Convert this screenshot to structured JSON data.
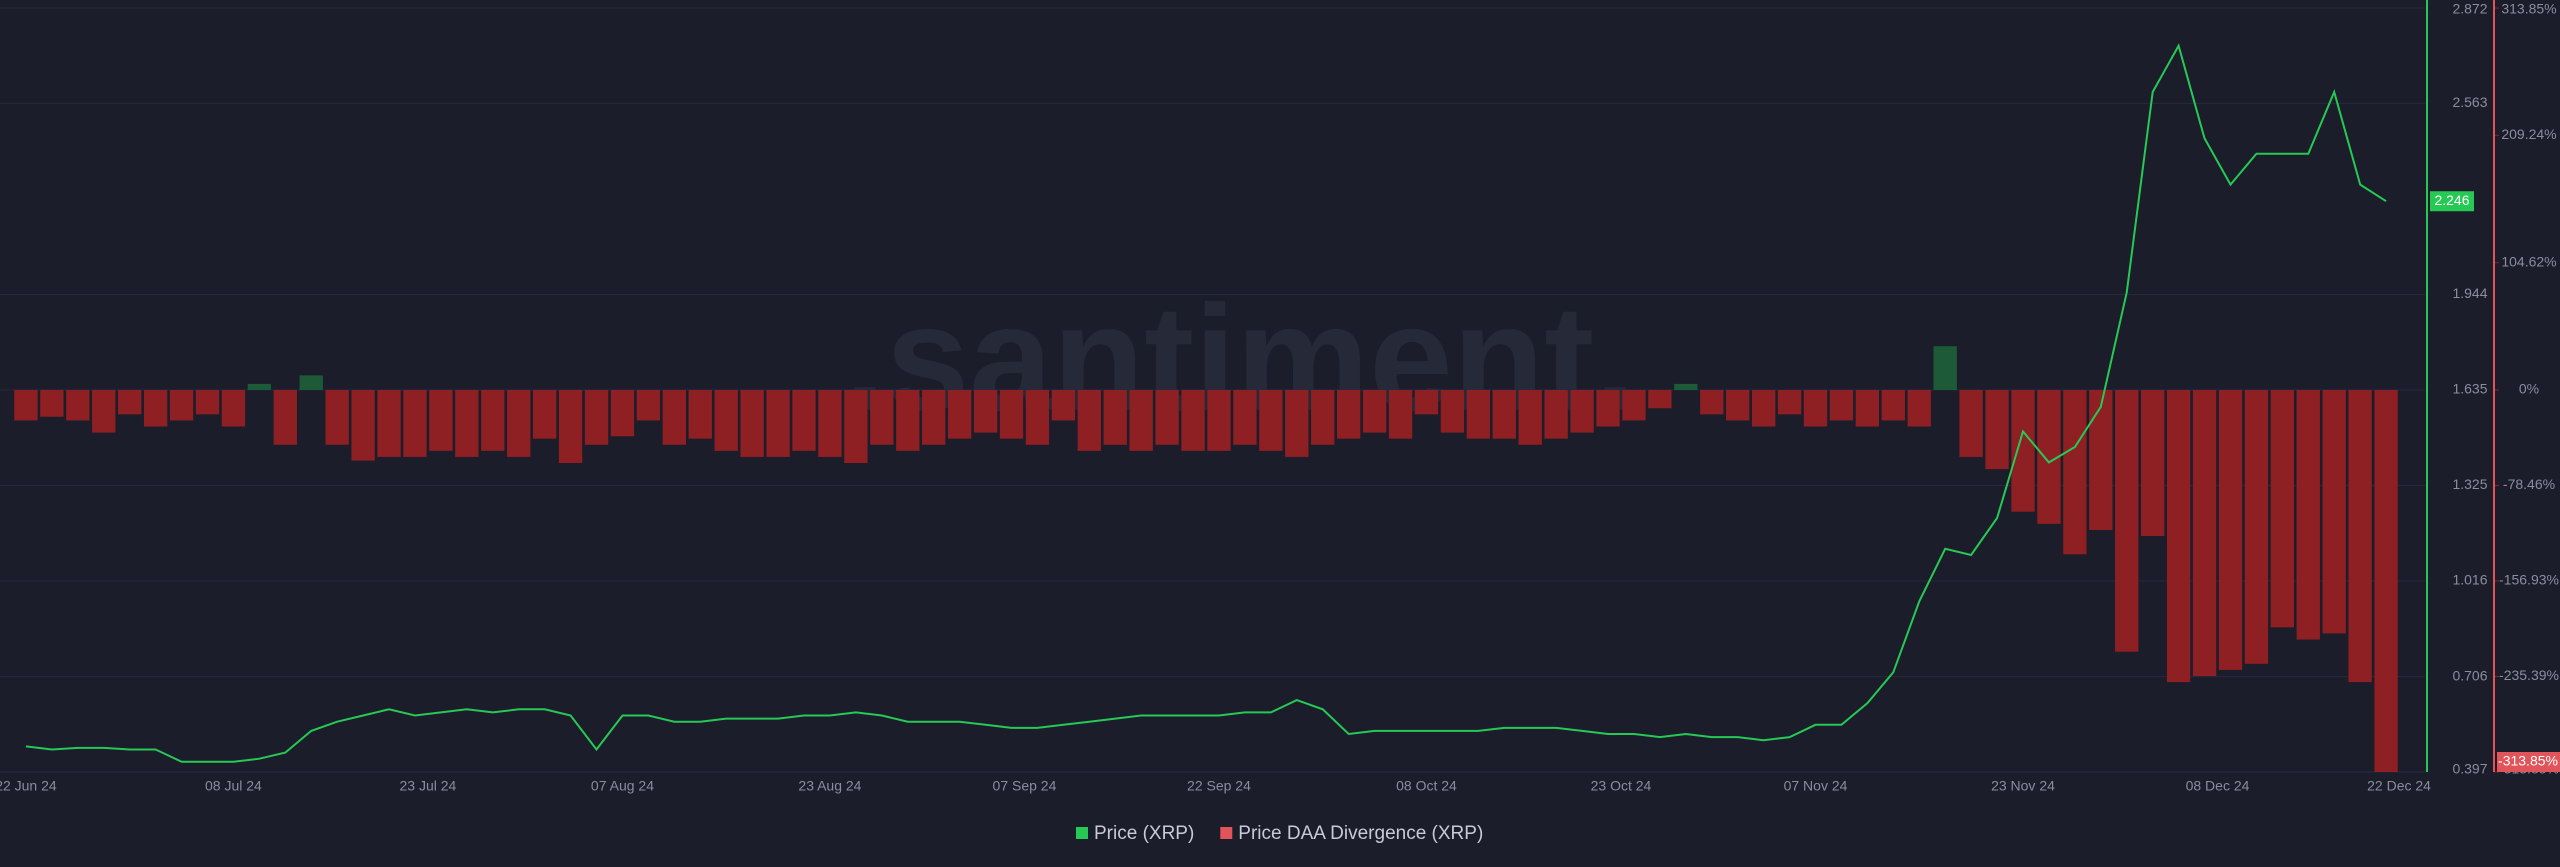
{
  "chart_data": {
    "type": "combo",
    "watermark": ".santiment.",
    "x": [
      "2024-06-22",
      "2024-06-24",
      "2024-06-26",
      "2024-06-28",
      "2024-06-30",
      "2024-07-02",
      "2024-07-04",
      "2024-07-06",
      "2024-07-08",
      "2024-07-10",
      "2024-07-12",
      "2024-07-14",
      "2024-07-16",
      "2024-07-18",
      "2024-07-20",
      "2024-07-22",
      "2024-07-24",
      "2024-07-26",
      "2024-07-28",
      "2024-07-30",
      "2024-08-01",
      "2024-08-03",
      "2024-08-05",
      "2024-08-07",
      "2024-08-09",
      "2024-08-11",
      "2024-08-13",
      "2024-08-15",
      "2024-08-17",
      "2024-08-19",
      "2024-08-21",
      "2024-08-23",
      "2024-08-25",
      "2024-08-27",
      "2024-08-29",
      "2024-08-31",
      "2024-09-02",
      "2024-09-04",
      "2024-09-06",
      "2024-09-08",
      "2024-09-10",
      "2024-09-12",
      "2024-09-14",
      "2024-09-16",
      "2024-09-18",
      "2024-09-20",
      "2024-09-22",
      "2024-09-24",
      "2024-09-26",
      "2024-09-28",
      "2024-09-30",
      "2024-10-02",
      "2024-10-04",
      "2024-10-06",
      "2024-10-08",
      "2024-10-10",
      "2024-10-12",
      "2024-10-14",
      "2024-10-16",
      "2024-10-18",
      "2024-10-20",
      "2024-10-22",
      "2024-10-24",
      "2024-10-26",
      "2024-10-28",
      "2024-10-30",
      "2024-11-01",
      "2024-11-03",
      "2024-11-05",
      "2024-11-07",
      "2024-11-09",
      "2024-11-11",
      "2024-11-13",
      "2024-11-15",
      "2024-11-17",
      "2024-11-19",
      "2024-11-21",
      "2024-11-23",
      "2024-11-25",
      "2024-11-27",
      "2024-11-29",
      "2024-12-01",
      "2024-12-03",
      "2024-12-05",
      "2024-12-07",
      "2024-12-09",
      "2024-12-11",
      "2024-12-13",
      "2024-12-15",
      "2024-12-17",
      "2024-12-19",
      "2024-12-21"
    ],
    "xlim": [
      "2024-06-20",
      "2024-12-24"
    ],
    "xticks": [
      {
        "value": "2024-06-22",
        "label": "22 Jun 24"
      },
      {
        "value": "2024-07-08",
        "label": "08 Jul 24"
      },
      {
        "value": "2024-07-23",
        "label": "23 Jul 24"
      },
      {
        "value": "2024-08-07",
        "label": "07 Aug 24"
      },
      {
        "value": "2024-08-23",
        "label": "23 Aug 24"
      },
      {
        "value": "2024-09-07",
        "label": "07 Sep 24"
      },
      {
        "value": "2024-09-22",
        "label": "22 Sep 24"
      },
      {
        "value": "2024-10-08",
        "label": "08 Oct 24"
      },
      {
        "value": "2024-10-23",
        "label": "23 Oct 24"
      },
      {
        "value": "2024-11-07",
        "label": "07 Nov 24"
      },
      {
        "value": "2024-11-23",
        "label": "23 Nov 24"
      },
      {
        "value": "2024-12-08",
        "label": "08 Dec 24"
      },
      {
        "value": "2024-12-22",
        "label": "22 Dec 24"
      }
    ],
    "ylim": [
      0.397,
      2.872
    ],
    "yticks": [
      0.397,
      0.706,
      1.016,
      1.325,
      1.635,
      1.944,
      2.563,
      2.872
    ],
    "y2lim": [
      -313.85,
      313.85
    ],
    "y2ticks": [
      {
        "value": 313.85,
        "label": "313.85%"
      },
      {
        "value": 209.24,
        "label": "209.24%"
      },
      {
        "value": 104.62,
        "label": "104.62%"
      },
      {
        "value": 0,
        "label": "0%"
      },
      {
        "value": -78.46,
        "label": "-78.46%"
      },
      {
        "value": -156.93,
        "label": "-156.93%"
      },
      {
        "value": -235.39,
        "label": "-235.39%"
      },
      {
        "value": -313.85,
        "label": "-313.85%"
      }
    ],
    "y_last": 2.246,
    "y2_last": {
      "value": -313.85,
      "label": "-313.85%"
    },
    "grid": true,
    "series": [
      {
        "name": "Price (XRP)",
        "type": "line",
        "color": "#26c953",
        "values": [
          0.48,
          0.47,
          0.475,
          0.475,
          0.47,
          0.47,
          0.43,
          0.43,
          0.43,
          0.44,
          0.46,
          0.53,
          0.56,
          0.58,
          0.6,
          0.58,
          0.59,
          0.6,
          0.59,
          0.6,
          0.6,
          0.58,
          0.47,
          0.58,
          0.58,
          0.56,
          0.56,
          0.57,
          0.57,
          0.57,
          0.58,
          0.58,
          0.59,
          0.58,
          0.56,
          0.56,
          0.56,
          0.55,
          0.54,
          0.54,
          0.55,
          0.56,
          0.57,
          0.58,
          0.58,
          0.58,
          0.58,
          0.59,
          0.59,
          0.63,
          0.6,
          0.52,
          0.53,
          0.53,
          0.53,
          0.53,
          0.53,
          0.54,
          0.54,
          0.54,
          0.53,
          0.52,
          0.52,
          0.51,
          0.52,
          0.51,
          0.51,
          0.5,
          0.51,
          0.55,
          0.55,
          0.62,
          0.72,
          0.95,
          1.12,
          1.1,
          1.22,
          1.5,
          1.4,
          1.45,
          1.58,
          1.95,
          2.6,
          2.75,
          2.45,
          2.3,
          2.4,
          2.4,
          2.4,
          2.6,
          2.3,
          2.246
        ]
      },
      {
        "name": "Price DAA Divergence (XRP)",
        "type": "bar",
        "axis": "y2",
        "color": "#8e1f22",
        "positive_color": "#1d5a37",
        "values": [
          -25,
          -22,
          -25,
          -35,
          -20,
          -30,
          -25,
          -20,
          -30,
          5,
          -45,
          12,
          -45,
          -58,
          -55,
          -55,
          -50,
          -55,
          -50,
          -55,
          -40,
          -60,
          -45,
          -38,
          -25,
          -45,
          -40,
          -50,
          -55,
          -55,
          -50,
          -55,
          -60,
          -45,
          -50,
          -45,
          -40,
          -35,
          -40,
          -45,
          -25,
          -50,
          -45,
          -50,
          -45,
          -50,
          -50,
          -45,
          -50,
          -55,
          -45,
          -40,
          -35,
          -40,
          -20,
          -35,
          -40,
          -40,
          -45,
          -40,
          -35,
          -30,
          -25,
          -15,
          5,
          -20,
          -25,
          -30,
          -20,
          -30,
          -25,
          -30,
          -25,
          -30,
          36,
          -55,
          -65,
          -100,
          -110,
          -135,
          -115,
          -215,
          -120,
          -240,
          -235,
          -230,
          -225,
          -195,
          -205,
          -200,
          -240,
          -313.85
        ]
      }
    ]
  }
}
